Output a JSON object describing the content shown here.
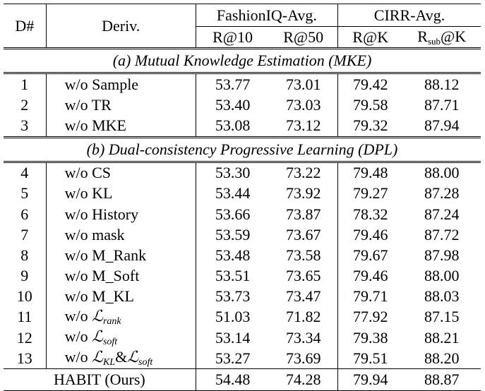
{
  "header": {
    "col_id": "D#",
    "col_deriv": "Deriv.",
    "group_fiq": "FashionIQ-Avg.",
    "group_cirr": "CIRR-Avg.",
    "metrics": [
      "R@10",
      "R@50",
      "R@K"
    ],
    "rsub_main": "R",
    "rsub_sub": "sub",
    "rsub_tail": "@K"
  },
  "sections": [
    {
      "title": "(a) Mutual Knowledge Estimation (MKE)",
      "rows": [
        {
          "id": "1",
          "deriv": "w/o Sample",
          "v": [
            "53.77",
            "73.01",
            "79.42",
            "88.12"
          ]
        },
        {
          "id": "2",
          "deriv": "w/o TR",
          "v": [
            "53.40",
            "73.03",
            "79.58",
            "87.71"
          ]
        },
        {
          "id": "3",
          "deriv": "w/o MKE",
          "v": [
            "53.08",
            "73.12",
            "79.32",
            "87.94"
          ]
        }
      ]
    },
    {
      "title": "(b) Dual-consistency Progressive Learning (DPL)",
      "rows": [
        {
          "id": "4",
          "deriv": "w/o CS",
          "v": [
            "53.30",
            "73.22",
            "79.48",
            "88.00"
          ]
        },
        {
          "id": "5",
          "deriv": "w/o KL",
          "v": [
            "53.44",
            "73.92",
            "79.27",
            "87.28"
          ]
        },
        {
          "id": "6",
          "deriv": "w/o History",
          "v": [
            "53.66",
            "73.87",
            "78.32",
            "87.24"
          ]
        },
        {
          "id": "7",
          "deriv": "w/o mask",
          "v": [
            "53.59",
            "73.67",
            "79.46",
            "87.72"
          ]
        },
        {
          "id": "8",
          "deriv": "w/o M_Rank",
          "v": [
            "53.48",
            "73.58",
            "79.67",
            "87.98"
          ]
        },
        {
          "id": "9",
          "deriv": "w/o M_Soft",
          "v": [
            "53.51",
            "73.65",
            "79.46",
            "88.00"
          ]
        },
        {
          "id": "10",
          "deriv": "w/o M_KL",
          "v": [
            "53.73",
            "73.47",
            "79.71",
            "88.03"
          ]
        },
        {
          "id": "11",
          "deriv_prefix": "w/o",
          "loss": [
            {
              "main": "ℒ",
              "sub": "rank"
            }
          ],
          "v": [
            "51.03",
            "71.82",
            "77.92",
            "87.15"
          ]
        },
        {
          "id": "12",
          "deriv_prefix": "w/o",
          "loss": [
            {
              "main": "ℒ",
              "sub": "soft"
            }
          ],
          "v": [
            "53.14",
            "73.34",
            "79.38",
            "88.21"
          ]
        },
        {
          "id": "13",
          "deriv_prefix": "w/o",
          "loss": [
            {
              "main": "ℒ",
              "sub": "KL"
            },
            {
              "main": "ℒ",
              "sub": "soft"
            }
          ],
          "loss_join": "&",
          "v": [
            "53.27",
            "73.69",
            "79.51",
            "88.20"
          ]
        }
      ]
    }
  ],
  "final": {
    "label": "HABIT (Ours)",
    "v": [
      "54.48",
      "74.28",
      "79.94",
      "88.87"
    ]
  }
}
